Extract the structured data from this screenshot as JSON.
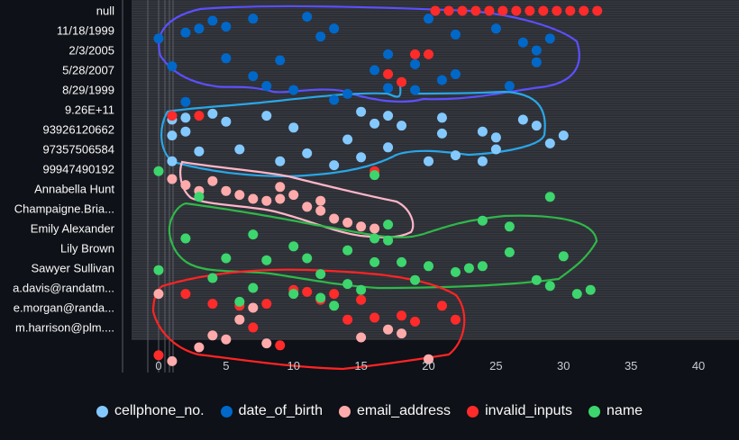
{
  "chart_data": {
    "type": "scatter",
    "y_categories": [
      "null",
      "11/18/1999",
      "2/3/2005",
      "5/28/2007",
      "8/29/1999",
      "9.26E+11",
      "93926120662",
      "97357506584",
      "99947490192",
      "Annabella Hunt",
      "Champaigne.Bria...",
      "Emily Alexander",
      "Lily Brown",
      "Sawyer Sullivan",
      "a.davis@randatm...",
      "e.morgan@randa...",
      "m.harrison@plm...."
    ],
    "x_ticks": [
      0,
      5,
      10,
      15,
      20,
      25,
      30,
      35,
      40
    ],
    "xlim": [
      -2,
      43
    ],
    "series": [
      {
        "name": "cellphone_no.",
        "color": "#83c9ff",
        "points": [
          [
            1,
            5.5
          ],
          [
            2,
            5.4
          ],
          [
            4,
            5.2
          ],
          [
            5,
            5.6
          ],
          [
            8,
            5.3
          ],
          [
            10,
            5.9
          ],
          [
            15,
            5.1
          ],
          [
            16,
            5.7
          ],
          [
            17,
            5.3
          ],
          [
            18,
            5.8
          ],
          [
            21,
            5.4
          ],
          [
            24,
            6.1
          ],
          [
            27,
            5.5
          ],
          [
            28,
            5.8
          ],
          [
            1,
            6.3
          ],
          [
            2,
            6.1
          ],
          [
            14,
            6.5
          ],
          [
            17,
            6.9
          ],
          [
            21,
            6.2
          ],
          [
            25,
            6.4
          ],
          [
            29,
            6.7
          ],
          [
            30,
            6.3
          ],
          [
            1,
            7.6
          ],
          [
            3,
            7.1
          ],
          [
            6,
            7.0
          ],
          [
            9,
            7.6
          ],
          [
            11,
            7.2
          ],
          [
            13,
            7.8
          ],
          [
            15,
            7.4
          ],
          [
            20,
            7.6
          ],
          [
            22,
            7.3
          ],
          [
            24,
            7.6
          ],
          [
            25,
            7.0
          ]
        ]
      },
      {
        "name": "date_of_birth",
        "color": "#0068c9",
        "points": [
          [
            4,
            0.5
          ],
          [
            5,
            0.8
          ],
          [
            7,
            0.4
          ],
          [
            11,
            0.3
          ],
          [
            20,
            0.4
          ],
          [
            0,
            1.4
          ],
          [
            2,
            1.1
          ],
          [
            3,
            0.9
          ],
          [
            12,
            1.3
          ],
          [
            13,
            0.9
          ],
          [
            22,
            1.2
          ],
          [
            25,
            0.9
          ],
          [
            27,
            1.6
          ],
          [
            28,
            2.0
          ],
          [
            29,
            1.4
          ],
          [
            1,
            2.8
          ],
          [
            5,
            2.4
          ],
          [
            9,
            2.5
          ],
          [
            17,
            2.2
          ],
          [
            19,
            2.7
          ],
          [
            22,
            3.2
          ],
          [
            28,
            2.6
          ],
          [
            7,
            3.3
          ],
          [
            8,
            3.8
          ],
          [
            10,
            4.0
          ],
          [
            16,
            3.0
          ],
          [
            17,
            3.9
          ],
          [
            19,
            4.0
          ],
          [
            21,
            3.5
          ],
          [
            26,
            3.8
          ],
          [
            2,
            4.6
          ],
          [
            13,
            4.5
          ],
          [
            14,
            4.2
          ]
        ]
      },
      {
        "name": "email_address",
        "color": "#ffabab",
        "points": [
          [
            1,
            8.5
          ],
          [
            3,
            9.1
          ],
          [
            6,
            9.3
          ],
          [
            7,
            9.5
          ],
          [
            8,
            9.6
          ],
          [
            9,
            9.5
          ],
          [
            10,
            9.3
          ],
          [
            11,
            9.9
          ],
          [
            12,
            10.1
          ],
          [
            13,
            10.5
          ],
          [
            14,
            10.7
          ],
          [
            15,
            10.9
          ],
          [
            16,
            11.0
          ],
          [
            2,
            8.8
          ],
          [
            4,
            8.6
          ],
          [
            5,
            9.1
          ],
          [
            9,
            8.9
          ],
          [
            12,
            9.6
          ],
          [
            0,
            14.3
          ],
          [
            4,
            16.4
          ],
          [
            5,
            16.6
          ],
          [
            8,
            16.8
          ],
          [
            15,
            16.5
          ],
          [
            17,
            16.1
          ],
          [
            18,
            16.3
          ],
          [
            20,
            17.6
          ],
          [
            1,
            17.7
          ],
          [
            3,
            17.0
          ],
          [
            6,
            15.6
          ],
          [
            7,
            15.0
          ]
        ]
      },
      {
        "name": "invalid_inputs",
        "color": "#ff2b2b",
        "points": [
          [
            20.5,
            0
          ],
          [
            21.5,
            0
          ],
          [
            22.5,
            0
          ],
          [
            23.5,
            0
          ],
          [
            24.5,
            0
          ],
          [
            25.5,
            0
          ],
          [
            26.5,
            0
          ],
          [
            27.5,
            0
          ],
          [
            28.5,
            0
          ],
          [
            29.5,
            0
          ],
          [
            30.5,
            0
          ],
          [
            31.5,
            0
          ],
          [
            32.5,
            0
          ],
          [
            19,
            2.2
          ],
          [
            20,
            2.2
          ],
          [
            17,
            3.2
          ],
          [
            18,
            3.6
          ],
          [
            1,
            5.3
          ],
          [
            3,
            5.3
          ],
          [
            16,
            8.1
          ],
          [
            2,
            14.3
          ],
          [
            4,
            14.8
          ],
          [
            6,
            14.9
          ],
          [
            8,
            14.8
          ],
          [
            10,
            14.1
          ],
          [
            11,
            14.2
          ],
          [
            12,
            14.6
          ],
          [
            13,
            14.3
          ],
          [
            14,
            15.6
          ],
          [
            15,
            14.6
          ],
          [
            16,
            15.5
          ],
          [
            18,
            15.4
          ],
          [
            19,
            15.7
          ],
          [
            21,
            14.9
          ],
          [
            22,
            15.6
          ],
          [
            7,
            16.0
          ],
          [
            9,
            16.9
          ],
          [
            0,
            17.4
          ]
        ]
      },
      {
        "name": "name",
        "color": "#3dd56d",
        "points": [
          [
            0,
            8.1
          ],
          [
            16,
            8.3
          ],
          [
            29,
            9.4
          ],
          [
            3,
            9.4
          ],
          [
            24,
            10.6
          ],
          [
            26,
            10.9
          ],
          [
            17,
            10.8
          ],
          [
            2,
            11.5
          ],
          [
            7,
            11.3
          ],
          [
            10,
            11.9
          ],
          [
            16,
            11.5
          ],
          [
            17,
            11.6
          ],
          [
            26,
            12.2
          ],
          [
            5,
            12.5
          ],
          [
            8,
            12.6
          ],
          [
            11,
            12.5
          ],
          [
            14,
            12.1
          ],
          [
            16,
            12.7
          ],
          [
            18,
            12.7
          ],
          [
            20,
            12.9
          ],
          [
            22,
            13.2
          ],
          [
            23,
            13.0
          ],
          [
            24,
            12.9
          ],
          [
            30,
            12.4
          ],
          [
            0,
            13.1
          ],
          [
            4,
            13.5
          ],
          [
            12,
            13.3
          ],
          [
            14,
            13.8
          ],
          [
            19,
            13.6
          ],
          [
            28,
            13.6
          ],
          [
            29,
            13.9
          ],
          [
            31,
            14.3
          ],
          [
            32,
            14.1
          ],
          [
            7,
            14.0
          ],
          [
            10,
            14.3
          ],
          [
            12,
            14.5
          ],
          [
            15,
            14.1
          ],
          [
            13,
            14.9
          ],
          [
            6,
            14.7
          ]
        ]
      }
    ],
    "legend": {
      "placement": "bottom-center",
      "items": [
        "cellphone_no.",
        "date_of_birth",
        "email_address",
        "invalid_inputs",
        "name"
      ]
    },
    "annotations": [
      {
        "shape": "freehand-loop",
        "color": "#5b50ff",
        "around": "date_of_birth"
      },
      {
        "shape": "freehand-loop",
        "color": "#29a7e8",
        "around": "cellphone_no."
      },
      {
        "shape": "freehand-loop",
        "color": "#ffb6c8",
        "around": "email_address"
      },
      {
        "shape": "freehand-loop",
        "color": "#2fb84a",
        "around": "name"
      },
      {
        "shape": "freehand-loop",
        "color": "#ff2424",
        "around": "invalid_inputs"
      }
    ],
    "grid": true
  }
}
